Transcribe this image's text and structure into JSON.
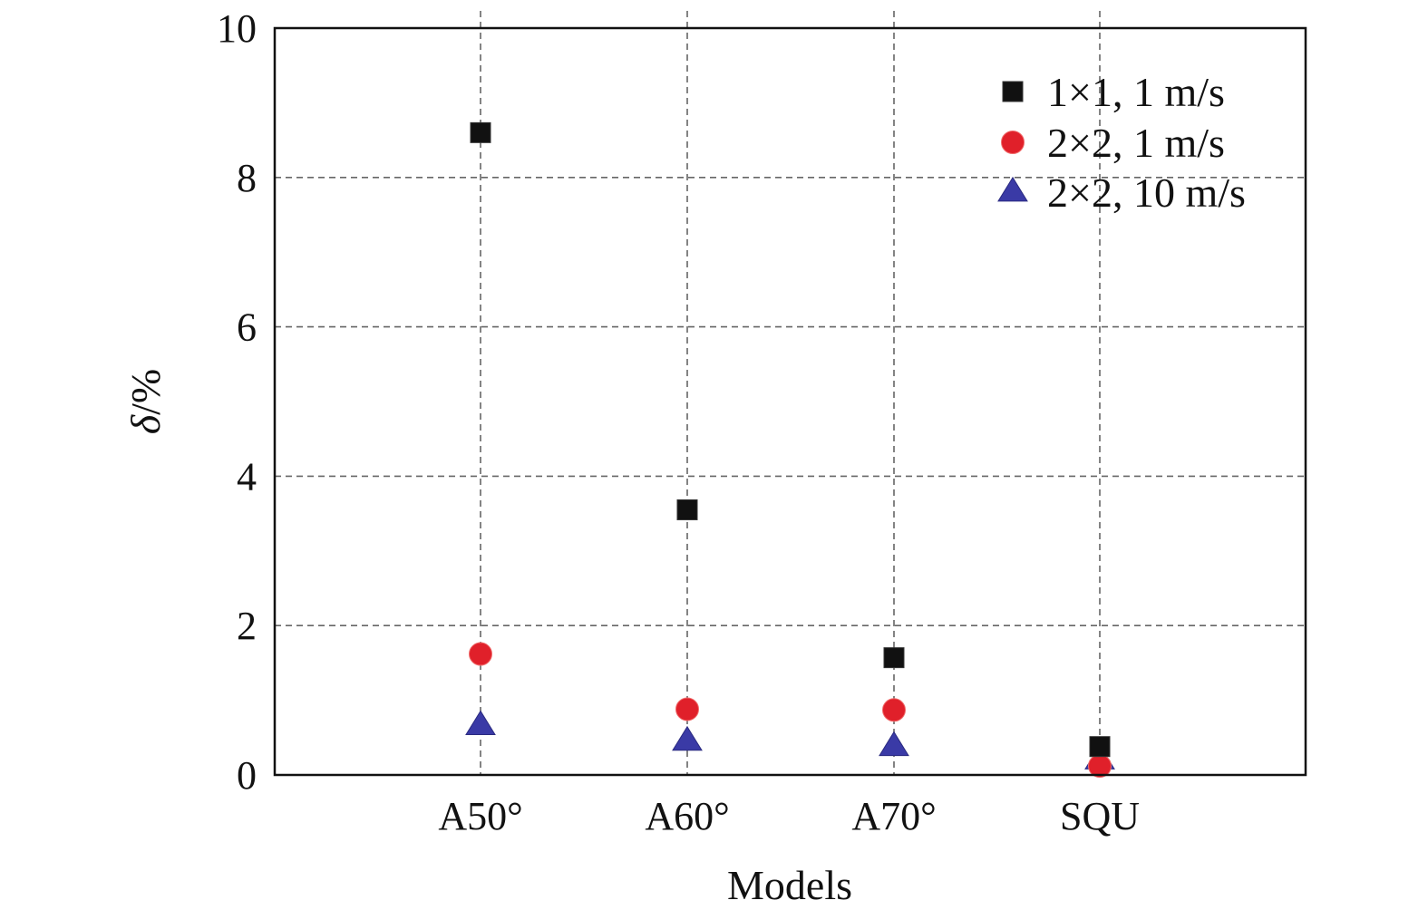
{
  "chart_data": {
    "type": "scatter",
    "title": "",
    "xlabel": "Models",
    "ylabel_symbol": "δ",
    "ylabel_unit": "/%",
    "categories": [
      "A50°",
      "A60°",
      "A70°",
      "SQU"
    ],
    "ylim": [
      0,
      10
    ],
    "yticks": [
      0,
      2,
      4,
      6,
      8,
      10
    ],
    "grid": true,
    "legend_position": "top-right",
    "series": [
      {
        "name": "1×1, 1 m/s",
        "marker": "square",
        "color": "#111111",
        "values": [
          8.6,
          3.55,
          1.57,
          0.38
        ]
      },
      {
        "name": "2×2, 1 m/s",
        "marker": "circle",
        "color": "#e0202a",
        "values": [
          1.62,
          0.88,
          0.87,
          0.12
        ]
      },
      {
        "name": "2×2, 10 m/s",
        "marker": "triangle",
        "color": "#3a3aa6",
        "values": [
          0.66,
          0.45,
          0.38,
          0.2
        ]
      }
    ]
  }
}
